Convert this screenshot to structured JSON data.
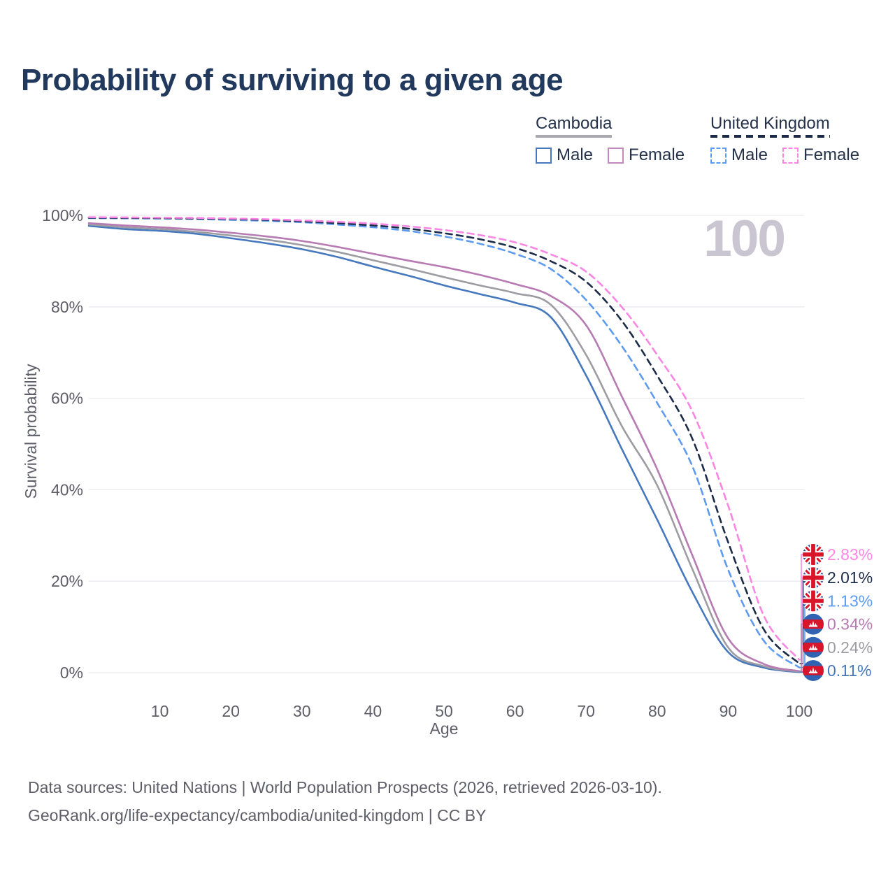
{
  "title": "Probability of surviving to a given age",
  "watermark_age": "100",
  "legend": {
    "groups": [
      {
        "label": "Cambodia",
        "underline_style": "solid",
        "underline_color": "#a9a9af",
        "items": [
          {
            "label": "Male",
            "color": "#4678bd",
            "dashed": false
          },
          {
            "label": "Female",
            "color": "#b77ab2",
            "dashed": false
          }
        ]
      },
      {
        "label": "United Kingdom",
        "underline_style": "dashed",
        "underline_color": "#1c2b47",
        "items": [
          {
            "label": "Male",
            "color": "#5d9bf0",
            "dashed": true
          },
          {
            "label": "Female",
            "color": "#fa86e4",
            "dashed": true
          }
        ]
      }
    ]
  },
  "chart_data": {
    "type": "line",
    "title": "Probability of surviving to a given age",
    "xlabel": "Age",
    "ylabel": "Survival probability",
    "xlim": [
      0,
      100
    ],
    "ylim": [
      0,
      100
    ],
    "grid": "horizontal-only",
    "x_ticks": [
      10,
      20,
      30,
      40,
      50,
      60,
      70,
      80,
      90,
      100
    ],
    "y_ticks": [
      {
        "value": 0,
        "label": "0%"
      },
      {
        "value": 20,
        "label": "20%"
      },
      {
        "value": 40,
        "label": "40%"
      },
      {
        "value": 60,
        "label": "60%"
      },
      {
        "value": 80,
        "label": "80%"
      },
      {
        "value": 100,
        "label": "100%"
      }
    ],
    "x": [
      0,
      5,
      10,
      15,
      20,
      25,
      30,
      35,
      40,
      45,
      50,
      55,
      60,
      65,
      70,
      75,
      80,
      85,
      90,
      95,
      100
    ],
    "series": [
      {
        "id": "cambodia-male",
        "name": "Cambodia Male",
        "color": "#4678bd",
        "dashed": false,
        "flag": "cambodia",
        "end_label": "0.11%",
        "values": [
          97.7,
          97.0,
          96.6,
          96.0,
          95.0,
          93.9,
          92.6,
          90.9,
          88.8,
          86.8,
          84.7,
          82.8,
          80.9,
          77.8,
          65.0,
          49.0,
          33.5,
          17.5,
          4.5,
          1.1,
          0.11
        ]
      },
      {
        "id": "cambodia-average",
        "name": "Cambodia",
        "color": "#9c9ca3",
        "dashed": false,
        "flag": "cambodia",
        "end_label": "0.24%",
        "values": [
          98.0,
          97.4,
          97.0,
          96.4,
          95.6,
          94.7,
          93.5,
          92.0,
          90.2,
          88.4,
          86.5,
          84.7,
          83.0,
          80.5,
          69.5,
          54.0,
          41.0,
          22.5,
          5.5,
          1.4,
          0.24
        ]
      },
      {
        "id": "cambodia-female",
        "name": "Cambodia Female",
        "color": "#b77ab2",
        "dashed": false,
        "flag": "cambodia",
        "end_label": "0.34%",
        "values": [
          98.3,
          97.8,
          97.4,
          96.9,
          96.2,
          95.4,
          94.4,
          93.1,
          91.6,
          90.1,
          88.7,
          87.0,
          85.0,
          82.4,
          76.0,
          60.5,
          44.5,
          25.5,
          7.5,
          1.9,
          0.34
        ]
      },
      {
        "id": "uk-male",
        "name": "United Kingdom Male",
        "color": "#5d9bf0",
        "dashed": true,
        "flag": "uk",
        "end_label": "1.13%",
        "values": [
          99.4,
          99.35,
          99.3,
          99.2,
          99.0,
          98.8,
          98.5,
          98.0,
          97.4,
          96.6,
          95.4,
          93.8,
          91.6,
          88.3,
          81.5,
          71.5,
          59.0,
          45.0,
          22.5,
          7.0,
          1.13
        ]
      },
      {
        "id": "uk-average",
        "name": "United Kingdom",
        "color": "#1c2b47",
        "dashed": true,
        "flag": "uk",
        "end_label": "2.01%",
        "values": [
          99.5,
          99.45,
          99.4,
          99.3,
          99.2,
          99.0,
          98.7,
          98.3,
          97.8,
          97.1,
          96.1,
          94.8,
          92.9,
          90.0,
          85.5,
          77.0,
          65.0,
          51.0,
          28.5,
          9.5,
          2.01
        ]
      },
      {
        "id": "uk-female",
        "name": "United Kingdom Female",
        "color": "#fa86e4",
        "dashed": true,
        "flag": "uk",
        "end_label": "2.83%",
        "values": [
          99.6,
          99.55,
          99.5,
          99.45,
          99.3,
          99.15,
          98.9,
          98.6,
          98.2,
          97.6,
          96.8,
          95.7,
          94.1,
          91.5,
          87.7,
          80.0,
          69.5,
          57.0,
          36.5,
          12.5,
          2.83
        ]
      }
    ]
  },
  "footer": {
    "line1": "Data sources: United Nations | World Population Prospects (2026, retrieved 2026-03-10).",
    "line2": "GeoRank.org/life-expectancy/cambodia/united-kingdom | CC BY"
  }
}
